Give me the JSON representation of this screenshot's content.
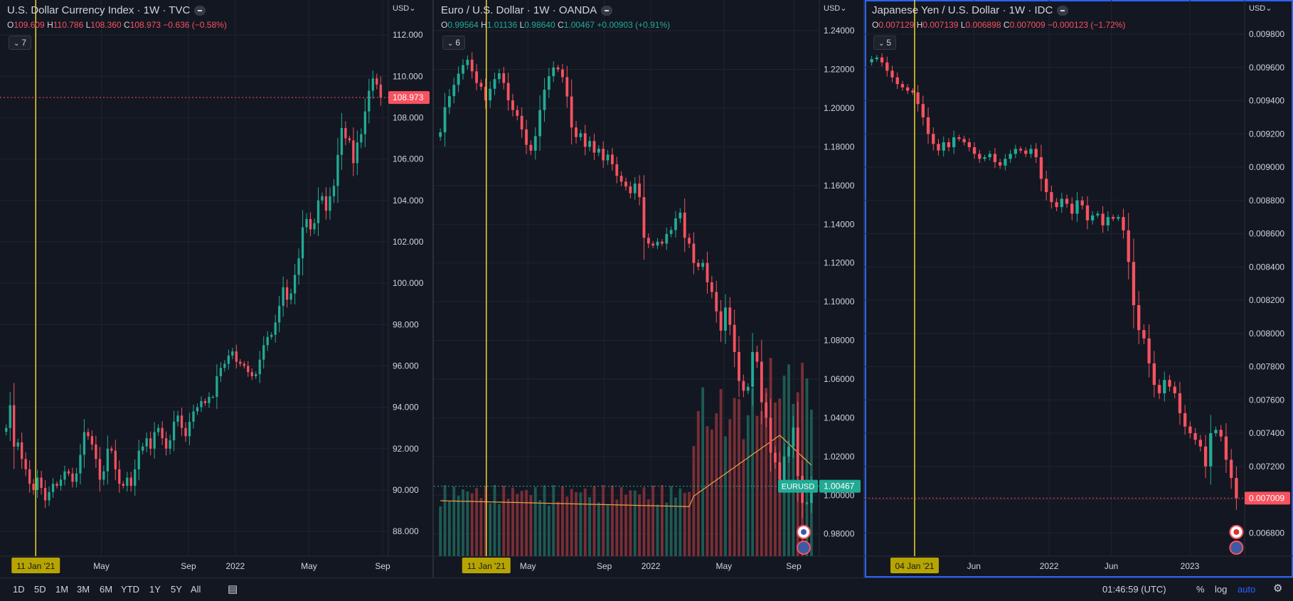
{
  "timeframes": [
    "1D",
    "5D",
    "1M",
    "3M",
    "6M",
    "YTD",
    "1Y",
    "5Y",
    "All"
  ],
  "status_time": "01:46:59 (UTC)",
  "scale_controls": {
    "percent": "%",
    "log": "log",
    "auto": "auto"
  },
  "colors": {
    "up": "#22ab94",
    "down": "#f7525f",
    "crosshair": "#f0d52a",
    "sma": "#f0a04b",
    "bg": "#131722",
    "grid": "#1f2430"
  },
  "chart_data": [
    {
      "type": "candlestick",
      "title": "U.S. Dollar Currency Index · 1W · TVC",
      "ohlc_legend": {
        "O": "109.609",
        "H": "110.786",
        "L": "108.360",
        "C": "108.973",
        "chg": "−0.636 (−0.58%)",
        "dir": "down"
      },
      "indicator_count": "7",
      "currency": "USD",
      "ylim": [
        86.8,
        113.0
      ],
      "yticks": [
        "112.000",
        "110.000",
        "108.000",
        "106.000",
        "104.000",
        "102.000",
        "100.000",
        "98.000",
        "96.000",
        "94.000",
        "92.000",
        "90.000",
        "88.000"
      ],
      "ytick_values": [
        112,
        110,
        108,
        106,
        104,
        102,
        100,
        98,
        96,
        94,
        92,
        90,
        88
      ],
      "xticks": [
        {
          "label": "May",
          "t": 0.29
        },
        {
          "label": "Sep",
          "t": 0.55
        },
        {
          "label": "2022",
          "t": 0.69
        },
        {
          "label": "May",
          "t": 0.91
        },
        {
          "label": "Sep",
          "t": 1.13
        }
      ],
      "crosshair_label": "11 Jan '21",
      "crosshair_t": 0.094,
      "last_price": "108.973",
      "last_value": 108.973,
      "closes": [
        93.0,
        94.1,
        92.1,
        92.3,
        91.5,
        91.0,
        90.3,
        90.0,
        90.6,
        90.1,
        89.5,
        89.9,
        90.3,
        90.2,
        90.5,
        90.9,
        90.8,
        90.4,
        90.8,
        91.7,
        92.8,
        92.6,
        92.2,
        91.5,
        90.5,
        90.9,
        92.0,
        91.9,
        91.0,
        90.3,
        90.2,
        90.6,
        90.2,
        91.0,
        91.9,
        92.1,
        92.5,
        92.0,
        92.8,
        93.0,
        92.5,
        92.0,
        92.4,
        93.3,
        93.6,
        93.0,
        92.6,
        93.3,
        93.8,
        94.0,
        94.3,
        94.2,
        94.5,
        94.5,
        95.5,
        95.9,
        96.1,
        96.5,
        96.7,
        96.2,
        96.1,
        96.0,
        95.7,
        95.5,
        95.6,
        96.3,
        97.0,
        97.4,
        97.5,
        98.1,
        98.9,
        99.8,
        99.2,
        99.5,
        100.4,
        101.2,
        102.7,
        103.1,
        102.6,
        102.9,
        104.0,
        104.2,
        103.5,
        104.2,
        104.7,
        106.2,
        107.5,
        107.0,
        106.9,
        105.8,
        106.8,
        107.2,
        108.3,
        109.3,
        109.9,
        109.6,
        108.97
      ],
      "x_count": 97
    },
    {
      "type": "candlestick",
      "title": "Euro / U.S. Dollar · 1W · OANDA",
      "ohlc_legend": {
        "O": "0.99564",
        "H": "1.01136",
        "L": "0.98640",
        "C": "1.00467",
        "chg": "+0.00903 (+0.91%)",
        "dir": "up"
      },
      "indicator_count": "6",
      "currency": "USD",
      "ylim": [
        0.9685,
        1.2485
      ],
      "yticks": [
        "1.24000",
        "1.22000",
        "1.20000",
        "1.18000",
        "1.16000",
        "1.14000",
        "1.12000",
        "1.10000",
        "1.08000",
        "1.06000",
        "1.04000",
        "1.02000",
        "1.00000",
        "0.98000"
      ],
      "ytick_values": [
        1.24,
        1.22,
        1.2,
        1.18,
        1.16,
        1.14,
        1.12,
        1.1,
        1.08,
        1.06,
        1.04,
        1.02,
        1.0,
        0.98
      ],
      "xticks": [
        {
          "label": "May",
          "t": 0.27
        },
        {
          "label": "Sep",
          "t": 0.5
        },
        {
          "label": "2022",
          "t": 0.64
        },
        {
          "label": "May",
          "t": 0.86
        },
        {
          "label": "Sep",
          "t": 1.07
        }
      ],
      "crosshair_label": "11 Jan '21",
      "crosshair_t": 0.145,
      "symbol_tag": "EURUSD",
      "last_price": "1.00467",
      "last_value": 1.00467,
      "closes": [
        1.1875,
        1.2005,
        1.2062,
        1.212,
        1.2178,
        1.2222,
        1.225,
        1.219,
        1.213,
        1.211,
        1.204,
        1.21,
        1.215,
        1.218,
        1.213,
        1.204,
        1.199,
        1.196,
        1.189,
        1.181,
        1.178,
        1.1855,
        1.199,
        1.2095,
        1.2165,
        1.221,
        1.22,
        1.216,
        1.206,
        1.19,
        1.185,
        1.187,
        1.18,
        1.183,
        1.177,
        1.179,
        1.173,
        1.176,
        1.171,
        1.165,
        1.162,
        1.1595,
        1.156,
        1.161,
        1.154,
        1.133,
        1.13,
        1.129,
        1.131,
        1.13,
        1.135,
        1.137,
        1.143,
        1.146,
        1.133,
        1.13,
        1.12,
        1.118,
        1.12,
        1.11,
        1.105,
        1.095,
        1.085,
        1.097,
        1.088,
        1.074,
        1.059,
        1.054,
        1.056,
        1.074,
        1.069,
        1.048,
        1.04,
        1.022,
        1.017,
        1.008,
        1.02,
        1.025,
        1.035,
        1.01,
        0.996,
        0.996,
        1.00467
      ],
      "x_count": 83,
      "volume_note": "volume bars + moving average",
      "sma_level": 0.9935
    },
    {
      "type": "candlestick",
      "title": "Japanese Yen / U.S. Dollar · 1W · IDC",
      "ohlc_legend": {
        "O": "0.007129",
        "H": "0.007139",
        "L": "0.006898",
        "C": "0.007009",
        "chg": "−0.000123 (−1.72%)",
        "dir": "down"
      },
      "indicator_count": "5",
      "currency": "USD",
      "ylim": [
        0.00666,
        0.00992
      ],
      "yticks": [
        "0.009800",
        "0.009600",
        "0.009400",
        "0.009200",
        "0.009000",
        "0.008800",
        "0.008600",
        "0.008400",
        "0.008200",
        "0.008000",
        "0.007800",
        "0.007600",
        "0.007400",
        "0.007200",
        "0.007000",
        "0.006800"
      ],
      "ytick_values": [
        0.0098,
        0.0096,
        0.0094,
        0.0092,
        0.009,
        0.0088,
        0.0086,
        0.0084,
        0.0082,
        0.008,
        0.0078,
        0.0076,
        0.0074,
        0.0072,
        0.007,
        0.0068
      ],
      "xticks": [
        {
          "label": "Jun",
          "t": 0.32
        },
        {
          "label": "2022",
          "t": 0.55
        },
        {
          "label": "Jun",
          "t": 0.74
        },
        {
          "label": "2023",
          "t": 0.98
        }
      ],
      "crosshair_label": "04 Jan '21",
      "crosshair_t": 0.139,
      "last_price": "0.007009",
      "last_value": 0.007009,
      "closes": [
        0.00965,
        0.00966,
        0.00963,
        0.00958,
        0.00954,
        0.0095,
        0.00948,
        0.00946,
        0.00945,
        0.00938,
        0.0093,
        0.0092,
        0.00914,
        0.0091,
        0.00915,
        0.00912,
        0.00918,
        0.00917,
        0.00915,
        0.00912,
        0.00908,
        0.00905,
        0.00906,
        0.00908,
        0.00903,
        0.00901,
        0.00905,
        0.00908,
        0.00911,
        0.0091,
        0.00908,
        0.00911,
        0.00906,
        0.00893,
        0.00885,
        0.00879,
        0.00876,
        0.00881,
        0.00878,
        0.00872,
        0.0088,
        0.00877,
        0.00868,
        0.00871,
        0.00872,
        0.00865,
        0.0087,
        0.00869,
        0.0087,
        0.00862,
        0.00843,
        0.00817,
        0.00802,
        0.00797,
        0.00782,
        0.00769,
        0.00764,
        0.00772,
        0.00768,
        0.00764,
        0.00752,
        0.00744,
        0.0074,
        0.00736,
        0.00732,
        0.0072,
        0.0074,
        0.00742,
        0.00738,
        0.00724,
        0.00713,
        0.007009
      ],
      "x_count": 72
    }
  ]
}
